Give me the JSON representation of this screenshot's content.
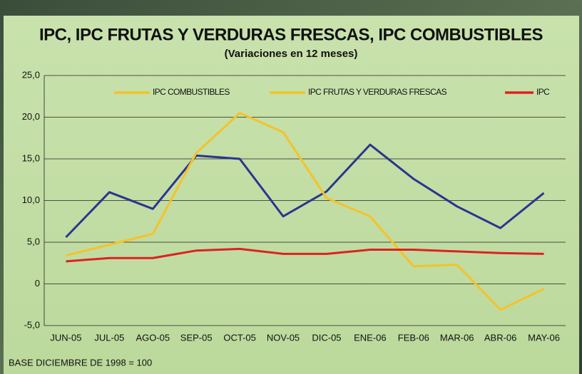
{
  "chart_data": {
    "type": "line",
    "title": "IPC, IPC FRUTAS Y VERDURAS FRESCAS, IPC COMBUSTIBLES",
    "subtitle": "(Variaciones en 12 meses)",
    "note": "BASE DICIEMBRE DE 1998 = 100",
    "categories": [
      "JUN-05",
      "JUL-05",
      "AGO-05",
      "SEP-05",
      "OCT-05",
      "NOV-05",
      "DIC-05",
      "ENE-06",
      "FEB-06",
      "MAR-06",
      "ABR-06",
      "MAY-06"
    ],
    "series": [
      {
        "name": "IPC COMBUSTIBLES",
        "color": "#2b3590",
        "legend_color": "#f5c22a",
        "values": [
          5.6,
          11.0,
          9.0,
          15.4,
          15.0,
          8.1,
          11.1,
          16.7,
          12.6,
          9.3,
          6.7,
          10.9
        ]
      },
      {
        "name": "IPC FRUTAS Y VERDURAS FRESCAS",
        "color": "#f5c22a",
        "legend_color": "#f5c22a",
        "values": [
          3.4,
          4.7,
          6.0,
          15.7,
          20.5,
          18.2,
          10.3,
          8.1,
          2.1,
          2.3,
          -3.1,
          -0.6
        ]
      },
      {
        "name": "IPC",
        "color": "#e02020",
        "legend_color": "#e02020",
        "values": [
          2.7,
          3.1,
          3.1,
          4.0,
          4.2,
          3.6,
          3.6,
          4.1,
          4.1,
          3.9,
          3.7,
          3.6
        ]
      }
    ],
    "ylim": [
      -5,
      25
    ],
    "yticks": [
      {
        "value": -5,
        "label": "-5,0"
      },
      0,
      {
        "value": 5,
        "label": "5,0"
      },
      {
        "value": 10,
        "label": "10,0"
      },
      {
        "value": 15,
        "label": "15,0"
      },
      {
        "value": 20,
        "label": "20,0"
      },
      {
        "value": 25,
        "label": "25,0"
      }
    ],
    "grid": true
  }
}
